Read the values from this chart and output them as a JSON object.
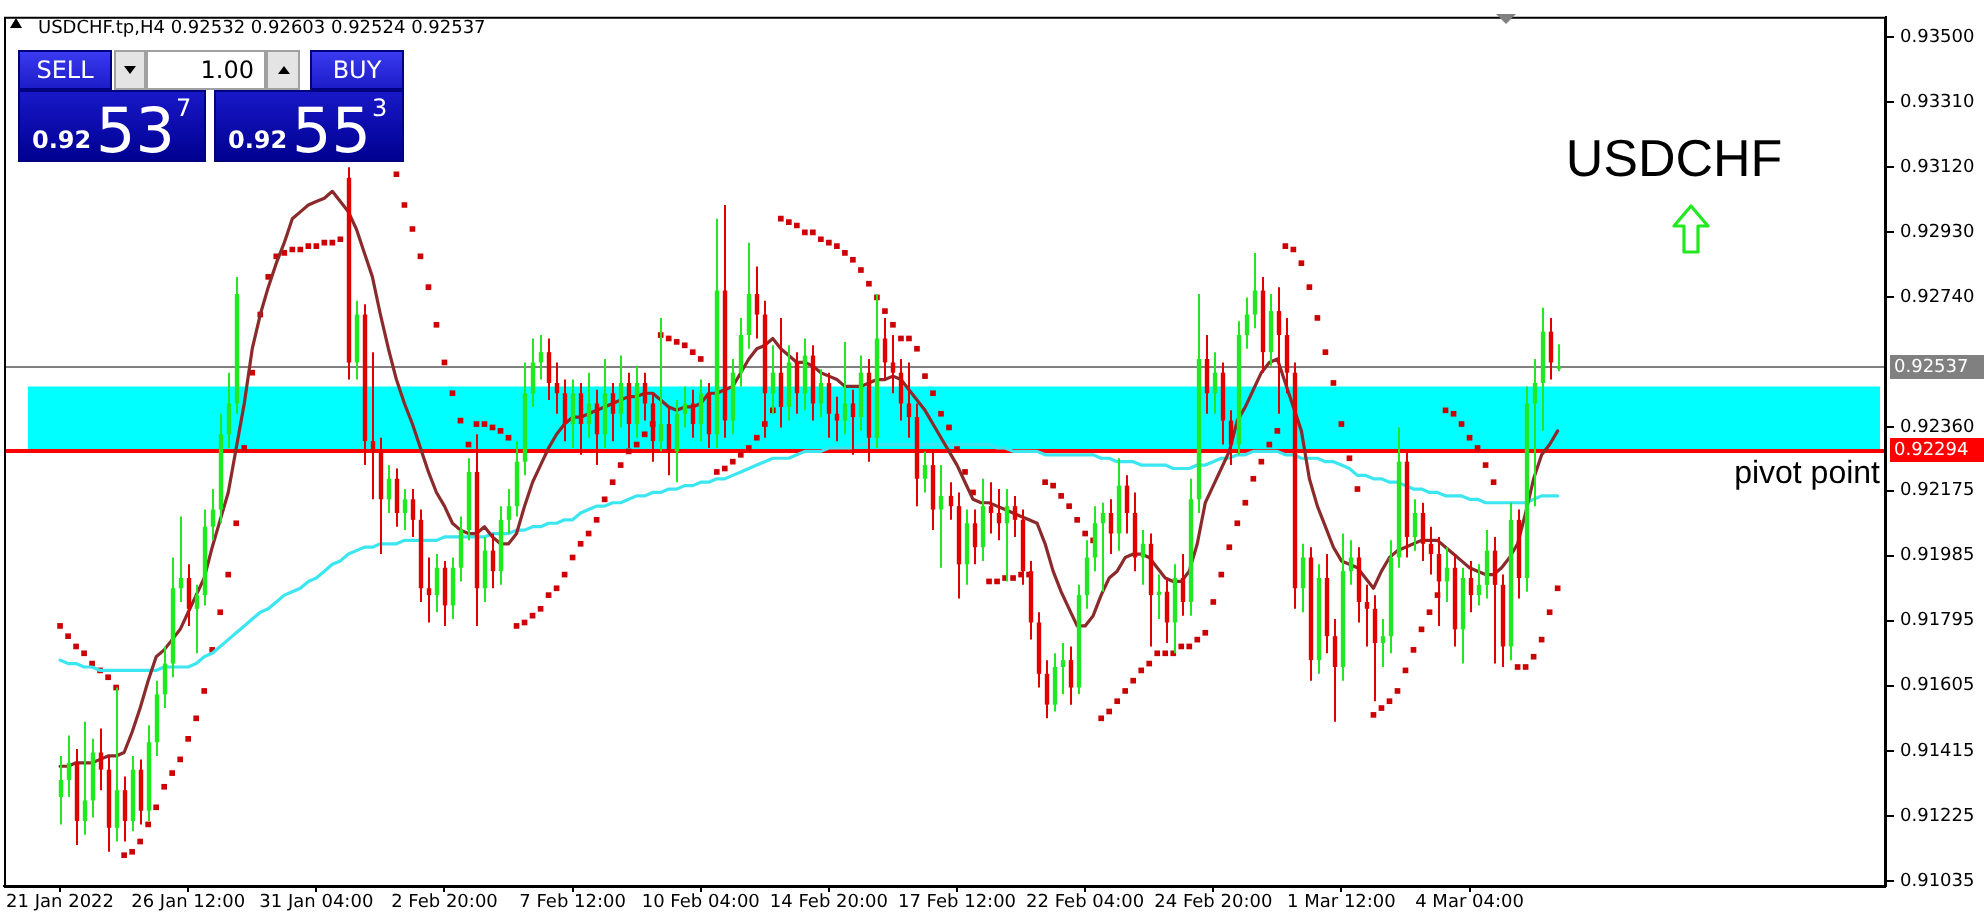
{
  "chart_data": {
    "type": "candlestick",
    "title": "USDCHF.tp,H4 0.92532 0.92603 0.92524 0.92537",
    "categories": [
      "21 Jan 2022",
      null,
      null,
      null,
      null,
      null,
      null,
      null,
      null,
      null,
      null,
      null,
      null,
      null,
      null,
      null,
      "26 Jan 12:00",
      null,
      null,
      null,
      null,
      null,
      null,
      null,
      null,
      null,
      null,
      null,
      null,
      null,
      null,
      null,
      "31 Jan 04:00",
      null,
      null,
      null,
      null,
      null,
      null,
      null,
      null,
      null,
      null,
      null,
      null,
      null,
      null,
      null,
      "2 Feb 20:00",
      null,
      null,
      null,
      null,
      null,
      null,
      null,
      null,
      null,
      null,
      null,
      null,
      null,
      null,
      null,
      "7 Feb 12:00",
      null,
      null,
      null,
      null,
      null,
      null,
      null,
      null,
      null,
      null,
      null,
      null,
      null,
      null,
      null,
      "10 Feb 04:00",
      null,
      null,
      null,
      null,
      null,
      null,
      null,
      null,
      null,
      null,
      null,
      null,
      null,
      null,
      null,
      "14 Feb 20:00",
      null,
      null,
      null,
      null,
      null,
      null,
      null,
      null,
      null,
      null,
      null,
      null,
      null,
      null,
      null,
      "17 Feb 12:00",
      null,
      null,
      null,
      null,
      null,
      null,
      null,
      null,
      null,
      null,
      null,
      null,
      null,
      null,
      null,
      "22 Feb 04:00",
      null,
      null,
      null,
      null,
      null,
      null,
      null,
      null,
      null,
      null,
      null,
      null,
      null,
      null,
      null,
      "24 Feb 20:00",
      null,
      null,
      null,
      null,
      null,
      null,
      null,
      null,
      null,
      null,
      null,
      null,
      null,
      null,
      null,
      "1 Mar 12:00",
      null,
      null,
      null,
      null,
      null,
      null,
      null,
      null,
      null,
      null,
      null,
      null,
      null,
      null,
      null,
      "4 Mar 04:00",
      null,
      null,
      null,
      null,
      null,
      null,
      null,
      null,
      null,
      null,
      null
    ],
    "ohlc": [
      [
        0.9128,
        0.914,
        0.912,
        0.9133
      ],
      [
        0.9133,
        0.9146,
        0.9128,
        0.9138
      ],
      [
        0.9138,
        0.9142,
        0.9114,
        0.9121
      ],
      [
        0.9121,
        0.915,
        0.9117,
        0.9127
      ],
      [
        0.9127,
        0.9145,
        0.9122,
        0.9141
      ],
      [
        0.9141,
        0.9148,
        0.913,
        0.9136
      ],
      [
        0.9136,
        0.914,
        0.9112,
        0.9119
      ],
      [
        0.9119,
        0.916,
        0.9115,
        0.913
      ],
      [
        0.913,
        0.9134,
        0.9115,
        0.9121
      ],
      [
        0.9121,
        0.914,
        0.9118,
        0.9136
      ],
      [
        0.9136,
        0.9139,
        0.912,
        0.9124
      ],
      [
        0.9124,
        0.9149,
        0.9121,
        0.9144
      ],
      [
        0.9144,
        0.9162,
        0.914,
        0.9158
      ],
      [
        0.9158,
        0.9172,
        0.9154,
        0.9167
      ],
      [
        0.9167,
        0.9198,
        0.9163,
        0.9189
      ],
      [
        0.9189,
        0.921,
        0.9185,
        0.9192
      ],
      [
        0.9192,
        0.9196,
        0.9178,
        0.9183
      ],
      [
        0.9183,
        0.919,
        0.917,
        0.9187
      ],
      [
        0.9187,
        0.9212,
        0.9184,
        0.9207
      ],
      [
        0.9207,
        0.9218,
        0.9203,
        0.9212
      ],
      [
        0.9212,
        0.924,
        0.9208,
        0.9234
      ],
      [
        0.9234,
        0.9252,
        0.923,
        0.9243
      ],
      [
        0.9243,
        0.928,
        0.924,
        0.9275
      ],
      null,
      null,
      null,
      null,
      null,
      null,
      null,
      null,
      null,
      null,
      null,
      null,
      null,
      [
        0.9309,
        0.9312,
        0.925,
        0.9255
      ],
      [
        0.9255,
        0.9273,
        0.925,
        0.9269
      ],
      [
        0.9269,
        0.9272,
        0.9225,
        0.9232
      ],
      [
        0.9232,
        0.9258,
        0.9215,
        0.9229
      ],
      [
        0.9229,
        0.9233,
        0.9199,
        0.9215
      ],
      [
        0.9215,
        0.9225,
        0.9211,
        0.9221
      ],
      [
        0.9221,
        0.9224,
        0.9207,
        0.9211
      ],
      [
        0.9211,
        0.9218,
        0.9206,
        0.9215
      ],
      [
        0.9215,
        0.9218,
        0.9204,
        0.9209
      ],
      [
        0.9209,
        0.9212,
        0.9185,
        0.9189
      ],
      [
        0.9189,
        0.9198,
        0.9179,
        0.9187
      ],
      [
        0.9187,
        0.9199,
        0.9182,
        0.9195
      ],
      [
        0.9195,
        0.9197,
        0.9178,
        0.9184
      ],
      [
        0.9184,
        0.9198,
        0.918,
        0.9195
      ],
      [
        0.9195,
        0.921,
        0.9191,
        0.9206
      ],
      [
        0.9206,
        0.9227,
        0.9203,
        0.9223
      ],
      [
        0.9223,
        0.9234,
        0.9178,
        0.9189
      ],
      [
        0.9189,
        0.9204,
        0.9185,
        0.92
      ],
      [
        0.92,
        0.9205,
        0.9189,
        0.9194
      ],
      [
        0.9194,
        0.9213,
        0.919,
        0.9209
      ],
      [
        0.9209,
        0.9218,
        0.9205,
        0.9213
      ],
      [
        0.9213,
        0.9232,
        0.921,
        0.9226
      ],
      [
        0.9226,
        0.9255,
        0.9222,
        0.9246
      ],
      [
        0.9246,
        0.9262,
        0.9242,
        0.9255
      ],
      [
        0.9255,
        0.9263,
        0.925,
        0.9258
      ],
      [
        0.9258,
        0.9262,
        0.9244,
        0.9249
      ],
      [
        0.9249,
        0.9255,
        0.924,
        0.9246
      ],
      [
        0.9246,
        0.925,
        0.9232,
        0.9237
      ],
      [
        0.9237,
        0.925,
        0.923,
        0.9246
      ],
      [
        0.9246,
        0.9249,
        0.9228,
        0.9237
      ],
      [
        0.9237,
        0.9252,
        0.9233,
        0.9243
      ],
      [
        0.9243,
        0.9247,
        0.9225,
        0.9234
      ],
      [
        0.9234,
        0.9256,
        0.923,
        0.9246
      ],
      [
        0.9246,
        0.9249,
        0.9232,
        0.924
      ],
      [
        0.924,
        0.9257,
        0.9236,
        0.9249
      ],
      [
        0.9249,
        0.9252,
        0.923,
        0.9237
      ],
      [
        0.9237,
        0.9254,
        0.9233,
        0.9249
      ],
      [
        0.9249,
        0.9252,
        0.9238,
        0.9243
      ],
      [
        0.9243,
        0.9246,
        0.9226,
        0.9232
      ],
      [
        0.9232,
        0.9268,
        0.9229,
        0.9237
      ],
      [
        0.9237,
        0.9242,
        0.9222,
        0.9229
      ],
      [
        0.9229,
        0.9244,
        0.922,
        0.924
      ],
      [
        0.924,
        0.9248,
        0.9236,
        0.9243
      ],
      [
        0.9243,
        0.9247,
        0.9233,
        0.9237
      ],
      [
        0.9237,
        0.925,
        0.9232,
        0.9246
      ],
      [
        0.9246,
        0.9249,
        0.923,
        0.9234
      ],
      [
        0.9234,
        0.9297,
        0.923,
        0.9276
      ],
      [
        0.9276,
        0.9301,
        0.9233,
        0.9238
      ],
      [
        0.9238,
        0.9256,
        0.9234,
        0.9252
      ],
      [
        0.9252,
        0.9268,
        0.9248,
        0.9263
      ],
      [
        0.9263,
        0.929,
        0.9259,
        0.9275
      ],
      [
        0.9275,
        0.9283,
        0.9262,
        0.9269
      ],
      [
        0.9269,
        0.9273,
        0.9233,
        0.9246
      ],
      [
        0.9246,
        0.926,
        0.924,
        0.9252
      ],
      [
        0.9252,
        0.9268,
        0.9236,
        0.9242
      ],
      [
        0.9242,
        0.926,
        0.9238,
        0.9255
      ],
      [
        0.9255,
        0.9258,
        0.924,
        0.9246
      ],
      [
        0.9246,
        0.9262,
        0.9241,
        0.9257
      ],
      [
        0.9257,
        0.926,
        0.9238,
        0.9243
      ],
      [
        0.9243,
        0.9253,
        0.9239,
        0.9249
      ],
      [
        0.9249,
        0.9252,
        0.9233,
        0.924
      ],
      [
        0.924,
        0.9245,
        0.9232,
        0.9238
      ],
      [
        0.9238,
        0.9261,
        0.9234,
        0.9243
      ],
      [
        0.9243,
        0.9247,
        0.9228,
        0.9239
      ],
      [
        0.9239,
        0.9257,
        0.9235,
        0.9252
      ],
      [
        0.9252,
        0.9256,
        0.9226,
        0.9233
      ],
      [
        0.9233,
        0.9275,
        0.923,
        0.9262
      ],
      [
        0.9262,
        0.9268,
        0.925,
        0.9255
      ],
      [
        0.9255,
        0.9263,
        0.9246,
        0.9252
      ],
      [
        0.9252,
        0.9256,
        0.9238,
        0.9243
      ],
      [
        0.9243,
        0.9255,
        0.9233,
        0.9239
      ],
      [
        0.9239,
        0.9243,
        0.9213,
        0.9221
      ],
      [
        0.9221,
        0.9229,
        0.9217,
        0.9225
      ],
      [
        0.9225,
        0.9229,
        0.9206,
        0.9212
      ],
      [
        0.9212,
        0.9225,
        0.9195,
        0.9216
      ],
      [
        0.9216,
        0.922,
        0.9209,
        0.9213
      ],
      [
        0.9213,
        0.9217,
        0.9186,
        0.9196
      ],
      [
        0.9196,
        0.9212,
        0.919,
        0.9208
      ],
      [
        0.9208,
        0.9212,
        0.9196,
        0.9201
      ],
      [
        0.9201,
        0.9221,
        0.9197,
        0.9213
      ],
      [
        0.9213,
        0.922,
        0.9205,
        0.9211
      ],
      [
        0.9211,
        0.9218,
        0.9203,
        0.9208
      ],
      [
        0.9208,
        0.9218,
        0.9191,
        0.9213
      ],
      [
        0.9213,
        0.9216,
        0.9204,
        0.9209
      ],
      [
        0.9209,
        0.9212,
        0.919,
        0.9194
      ],
      [
        0.9194,
        0.9197,
        0.9174,
        0.9179
      ],
      [
        0.9179,
        0.9182,
        0.916,
        0.9164
      ],
      [
        0.9164,
        0.9168,
        0.9151,
        0.9155
      ],
      [
        0.9155,
        0.917,
        0.9153,
        0.9166
      ],
      [
        0.9166,
        0.9173,
        0.9158,
        0.9168
      ],
      [
        0.9168,
        0.9172,
        0.9155,
        0.916
      ],
      [
        0.916,
        0.919,
        0.9158,
        0.9187
      ],
      [
        0.9187,
        0.9203,
        0.9183,
        0.9198
      ],
      [
        0.9198,
        0.9213,
        0.9194,
        0.9208
      ],
      [
        0.9208,
        0.9214,
        0.9188,
        0.9211
      ],
      [
        0.9211,
        0.9215,
        0.9199,
        0.9205
      ],
      [
        0.9205,
        0.9227,
        0.92,
        0.9219
      ],
      [
        0.9219,
        0.9222,
        0.9205,
        0.9211
      ],
      [
        0.9211,
        0.9217,
        0.9194,
        0.9198
      ],
      [
        0.9198,
        0.9206,
        0.919,
        0.9202
      ],
      [
        0.9202,
        0.9205,
        0.9172,
        0.9187
      ],
      [
        0.9187,
        0.9193,
        0.918,
        0.9188
      ],
      [
        0.9188,
        0.9192,
        0.9173,
        0.9179
      ],
      [
        0.9179,
        0.9196,
        0.917,
        0.9192
      ],
      [
        0.9192,
        0.9199,
        0.9181,
        0.9185
      ],
      [
        0.9185,
        0.9221,
        0.9181,
        0.9215
      ],
      [
        0.9215,
        0.9275,
        0.9211,
        0.9256
      ],
      [
        0.9256,
        0.9263,
        0.924,
        0.9246
      ],
      [
        0.9246,
        0.9258,
        0.924,
        0.9252
      ],
      [
        0.9252,
        0.9255,
        0.9231,
        0.9238
      ],
      [
        0.9238,
        0.9241,
        0.9225,
        0.9231
      ],
      [
        0.9231,
        0.9267,
        0.9228,
        0.9263
      ],
      [
        0.9263,
        0.9274,
        0.9259,
        0.9269
      ],
      [
        0.9269,
        0.9287,
        0.9265,
        0.9276
      ],
      [
        0.9276,
        0.928,
        0.9252,
        0.9258
      ],
      [
        0.9258,
        0.9275,
        0.9254,
        0.927
      ],
      [
        0.927,
        0.9277,
        0.924,
        0.9263
      ],
      [
        0.9263,
        0.9268,
        0.9246,
        0.9252
      ],
      [
        0.9252,
        0.9255,
        0.9183,
        0.9189
      ],
      [
        0.9189,
        0.9202,
        0.9182,
        0.9198
      ],
      [
        0.9198,
        0.9201,
        0.9162,
        0.9168
      ],
      [
        0.9168,
        0.9196,
        0.9164,
        0.9192
      ],
      [
        0.9192,
        0.9199,
        0.917,
        0.9175
      ],
      [
        0.9175,
        0.918,
        0.915,
        0.9166
      ],
      [
        0.9166,
        0.9205,
        0.9162,
        0.9194
      ],
      [
        0.9194,
        0.9203,
        0.919,
        0.9198
      ],
      [
        0.9198,
        0.9201,
        0.9179,
        0.9185
      ],
      [
        0.9185,
        0.919,
        0.9172,
        0.9183
      ],
      [
        0.9183,
        0.9187,
        0.9156,
        0.9173
      ],
      [
        0.9173,
        0.918,
        0.9166,
        0.9175
      ],
      [
        0.9175,
        0.9203,
        0.917,
        0.9198
      ],
      [
        0.9198,
        0.9236,
        0.9195,
        0.9226
      ],
      [
        0.9226,
        0.9229,
        0.9198,
        0.9204
      ],
      [
        0.9204,
        0.9215,
        0.92,
        0.9211
      ],
      [
        0.9211,
        0.9214,
        0.9197,
        0.9202
      ],
      [
        0.9202,
        0.9207,
        0.9193,
        0.9199
      ],
      [
        0.9199,
        0.9204,
        0.9178,
        0.9191
      ],
      [
        0.9191,
        0.9201,
        0.9185,
        0.9195
      ],
      [
        0.9195,
        0.9199,
        0.9172,
        0.9177
      ],
      [
        0.9177,
        0.9195,
        0.9167,
        0.9192
      ],
      [
        0.9192,
        0.9197,
        0.9182,
        0.9187
      ],
      [
        0.9187,
        0.9196,
        0.9184,
        0.919
      ],
      [
        0.919,
        0.9206,
        0.9186,
        0.92
      ],
      [
        0.92,
        0.9204,
        0.9167,
        0.919
      ],
      [
        0.919,
        0.9193,
        0.9166,
        0.9172
      ],
      [
        0.9172,
        0.9214,
        0.9168,
        0.9209
      ],
      [
        0.9209,
        0.9212,
        0.9186,
        0.9192
      ],
      [
        0.9192,
        0.9248,
        0.9188,
        0.9243
      ],
      [
        0.9243,
        0.9256,
        0.9213,
        0.9249
      ],
      [
        0.9249,
        0.9271,
        0.9235,
        0.9264
      ],
      [
        0.9264,
        0.9268,
        0.925,
        0.9255
      ],
      [
        0.92532,
        0.92603,
        0.92524,
        0.92537
      ]
    ],
    "colors": [
      "#22e822",
      "#22e822",
      "#e00000",
      "#22e822",
      "#22e822",
      "#e00000",
      "#e00000",
      "#22e822",
      "#e00000",
      "#22e822",
      "#e00000",
      "#22e822",
      "#22e822",
      "#22e822",
      "#22e822",
      "#22e822",
      "#e00000",
      "#22e822",
      "#22e822",
      "#22e822",
      "#22e822",
      "#22e822",
      "#22e822",
      null,
      null,
      null,
      null,
      null,
      null,
      null,
      null,
      null,
      null,
      null,
      null,
      null,
      "#e00000",
      "#22e822",
      "#e00000",
      "#e00000",
      "#e00000",
      "#22e822",
      "#e00000",
      "#22e822",
      "#e00000",
      "#e00000",
      "#e00000",
      "#22e822",
      "#e00000",
      "#22e822",
      "#22e822",
      "#22e822",
      "#e00000",
      "#22e822",
      "#e00000",
      "#22e822",
      "#22e822",
      "#22e822",
      "#22e822",
      "#22e822",
      "#22e822",
      "#e00000",
      "#e00000",
      "#e00000",
      "#22e822",
      "#e00000",
      "#22e822",
      "#e00000",
      "#22e822",
      "#e00000",
      "#22e822",
      "#e00000",
      "#22e822",
      "#e00000",
      "#e00000",
      "#22e822",
      "#e00000",
      "#22e822",
      "#22e822",
      "#e00000",
      "#22e822",
      "#e00000",
      "#22e822",
      "#e00000",
      "#22e822",
      "#22e822",
      "#22e822",
      "#e00000",
      "#e00000",
      "#22e822",
      "#e00000",
      "#22e822",
      "#e00000",
      "#22e822",
      "#e00000",
      "#22e822",
      "#e00000",
      "#e00000",
      "#22e822",
      "#e00000",
      "#22e822",
      "#e00000",
      "#22e822",
      "#e00000",
      "#e00000",
      "#e00000",
      "#e00000",
      "#e00000",
      "#22e822",
      "#e00000",
      "#22e822",
      "#e00000",
      "#e00000",
      "#22e822",
      "#e00000",
      "#22e822",
      "#e00000",
      "#e00000",
      "#22e822",
      "#e00000",
      "#e00000",
      "#e00000",
      "#e00000",
      "#e00000",
      "#22e822",
      "#22e822",
      "#e00000",
      "#22e822",
      "#22e822",
      "#22e822",
      "#22e822",
      "#e00000",
      "#22e822",
      "#e00000",
      "#e00000",
      "#22e822",
      "#e00000",
      "#22e822",
      "#e00000",
      "#22e822",
      "#e00000",
      "#22e822",
      "#22e822",
      "#e00000",
      "#22e822",
      "#e00000",
      "#e00000",
      "#22e822",
      "#22e822",
      "#22e822",
      "#e00000",
      "#22e822",
      "#e00000",
      "#e00000",
      "#e00000",
      "#22e822",
      "#e00000",
      "#22e822",
      "#e00000",
      "#e00000",
      "#22e822",
      "#22e822",
      "#e00000",
      "#e00000",
      "#e00000",
      "#22e822",
      "#22e822",
      "#22e822",
      "#e00000",
      "#22e822",
      "#e00000",
      "#e00000",
      "#e00000",
      "#22e822",
      "#e00000",
      "#22e822",
      "#e00000",
      "#22e822",
      "#22e822",
      "#e00000",
      "#e00000",
      "#22e822",
      "#e00000",
      "#22e822",
      "#22e822",
      "#22e822",
      "#e00000",
      "#22e822"
    ],
    "series": [
      {
        "type": "line",
        "color": "#8b2a2a",
        "values": [
          0.9137,
          0.9137,
          0.9138,
          0.9138,
          0.9138,
          0.9139,
          0.914,
          0.914,
          0.9141,
          0.9147,
          0.9154,
          0.9162,
          0.9169,
          0.9171,
          0.9174,
          0.9177,
          0.9182,
          0.9187,
          0.9192,
          0.9201,
          0.9209,
          0.9217,
          0.923,
          0.9243,
          0.9259,
          0.9269,
          0.9277,
          0.9284,
          0.929,
          0.9297,
          0.9299,
          0.9301,
          0.9302,
          0.9303,
          0.9305,
          0.9302,
          0.9299,
          0.9294,
          0.9287,
          0.928,
          0.9269,
          0.9259,
          0.925,
          0.9243,
          0.9237,
          0.923,
          0.9223,
          0.9217,
          0.9213,
          0.9208,
          0.9206,
          0.9205,
          0.9205,
          0.9207,
          0.9204,
          0.9202,
          0.9202,
          0.9205,
          0.9213,
          0.922,
          0.9225,
          0.923,
          0.9234,
          0.9237,
          0.9239,
          0.9239,
          0.924,
          0.9241,
          0.9242,
          0.9243,
          0.9244,
          0.9245,
          0.9245,
          0.9246,
          0.9246,
          0.9244,
          0.9242,
          0.9241,
          0.9242,
          0.9242,
          0.9243,
          0.9246,
          0.9246,
          0.9247,
          0.9248,
          0.9252,
          0.9256,
          0.9259,
          0.926,
          0.9262,
          0.9259,
          0.9257,
          0.9255,
          0.9255,
          0.9254,
          0.9252,
          0.9251,
          0.925,
          0.9248,
          0.9248,
          0.9248,
          0.9249,
          0.925,
          0.925,
          0.9251,
          0.925,
          0.9247,
          0.9244,
          0.9241,
          0.9237,
          0.9233,
          0.9229,
          0.9225,
          0.922,
          0.9215,
          0.9214,
          0.9214,
          0.9213,
          0.9212,
          0.9211,
          0.921,
          0.9209,
          0.9208,
          0.9202,
          0.9194,
          0.9188,
          0.9183,
          0.9178,
          0.9178,
          0.9181,
          0.9187,
          0.9192,
          0.9194,
          0.9198,
          0.9199,
          0.9199,
          0.9198,
          0.9195,
          0.9192,
          0.9191,
          0.9191,
          0.9194,
          0.9202,
          0.9214,
          0.9219,
          0.9224,
          0.9229,
          0.9238,
          0.9242,
          0.9247,
          0.9252,
          0.9255,
          0.9256,
          0.9249,
          0.9242,
          0.9235,
          0.9221,
          0.9213,
          0.9207,
          0.9201,
          0.9197,
          0.9196,
          0.9195,
          0.9192,
          0.9189,
          0.9194,
          0.9198,
          0.92,
          0.9201,
          0.9202,
          0.9203,
          0.9203,
          0.9203,
          0.9201,
          0.9199,
          0.9197,
          0.9195,
          0.9194,
          0.9193,
          0.9193,
          0.9195,
          0.9198,
          0.9202,
          0.9211,
          0.9221,
          0.9228,
          0.9231,
          0.9235
        ]
      },
      {
        "type": "line",
        "color": "#3ce6f0",
        "values": [
          0.9168,
          0.9167,
          0.9167,
          0.9166,
          0.9166,
          0.9165,
          0.9165,
          0.9165,
          0.9165,
          0.9165,
          0.9165,
          0.9165,
          0.9165,
          0.9166,
          0.9166,
          0.9166,
          0.9166,
          0.9167,
          0.9169,
          0.917,
          0.9172,
          0.9174,
          0.9176,
          0.9178,
          0.918,
          0.9182,
          0.9183,
          0.9185,
          0.9187,
          0.9188,
          0.9189,
          0.9191,
          0.9192,
          0.9194,
          0.9196,
          0.9197,
          0.9199,
          0.92,
          0.9201,
          0.9201,
          0.9202,
          0.9202,
          0.9202,
          0.9203,
          0.9203,
          0.9203,
          0.9203,
          0.9203,
          0.9204,
          0.9204,
          0.9204,
          0.9204,
          0.9204,
          0.9204,
          0.9205,
          0.9205,
          0.9205,
          0.9206,
          0.9206,
          0.9207,
          0.9207,
          0.9208,
          0.9208,
          0.9209,
          0.9209,
          0.9211,
          0.9212,
          0.9213,
          0.9213,
          0.9214,
          0.9214,
          0.9215,
          0.9216,
          0.9216,
          0.9217,
          0.9217,
          0.9218,
          0.9218,
          0.9219,
          0.9219,
          0.922,
          0.922,
          0.9221,
          0.9221,
          0.9222,
          0.9223,
          0.9224,
          0.9225,
          0.9226,
          0.9227,
          0.9227,
          0.9227,
          0.9228,
          0.9229,
          0.9229,
          0.9229,
          0.923,
          0.923,
          0.923,
          0.923,
          0.9231,
          0.9231,
          0.9231,
          0.9231,
          0.9231,
          0.9231,
          0.9231,
          0.9231,
          0.9231,
          0.9231,
          0.9231,
          0.9231,
          0.9231,
          0.9231,
          0.9231,
          0.9231,
          0.9231,
          0.923,
          0.923,
          0.9229,
          0.9229,
          0.9229,
          0.9229,
          0.9228,
          0.9228,
          0.9228,
          0.9228,
          0.9228,
          0.9228,
          0.9228,
          0.9227,
          0.9227,
          0.9226,
          0.9226,
          0.9226,
          0.9225,
          0.9225,
          0.9225,
          0.9225,
          0.9224,
          0.9224,
          0.9224,
          0.9225,
          0.9225,
          0.9226,
          0.9227,
          0.9227,
          0.9228,
          0.9228,
          0.9229,
          0.9229,
          0.9229,
          0.9229,
          0.9228,
          0.9228,
          0.9227,
          0.9227,
          0.9227,
          0.9226,
          0.9226,
          0.9225,
          0.9224,
          0.9222,
          0.9222,
          0.9221,
          0.9221,
          0.922,
          0.922,
          0.9219,
          0.9218,
          0.9218,
          0.9217,
          0.9217,
          0.9216,
          0.9216,
          0.9216,
          0.9215,
          0.9215,
          0.9214,
          0.9214,
          0.9214,
          0.9214,
          0.9214,
          0.9214,
          0.9215,
          0.9216,
          0.9216,
          0.9216
        ]
      },
      {
        "type": "scatter",
        "color": "#cc0000",
        "marker": "square",
        "values": [
          0.9178,
          0.9175,
          0.9172,
          0.917,
          0.9167,
          0.9165,
          0.9163,
          0.916,
          0.9111,
          0.9112,
          0.9115,
          0.912,
          0.9125,
          0.9131,
          0.9135,
          0.9139,
          0.9145,
          0.9151,
          0.9159,
          0.9171,
          0.9182,
          0.9193,
          0.9208,
          0.923,
          0.9252,
          0.9269,
          0.928,
          0.9286,
          0.9287,
          0.9288,
          0.9288,
          0.9289,
          0.9289,
          0.929,
          0.929,
          0.9291,
          null,
          null,
          null,
          null,
          null,
          null,
          0.931,
          0.9301,
          0.9294,
          0.9286,
          0.9277,
          0.9266,
          0.9255,
          0.9246,
          0.9238,
          0.9231,
          0.9237,
          0.9237,
          0.9236,
          0.9235,
          0.9233,
          0.9178,
          0.9179,
          0.9181,
          0.9183,
          0.9187,
          0.9189,
          0.9193,
          0.9198,
          0.9202,
          0.9205,
          0.9209,
          0.9215,
          0.922,
          0.9225,
          0.9229,
          0.9231,
          0.9234,
          0.9237,
          0.9263,
          0.9262,
          0.9261,
          0.926,
          0.9258,
          0.9256,
          null,
          0.9223,
          0.9224,
          0.9226,
          0.9228,
          0.923,
          0.9233,
          0.9237,
          0.9241,
          0.9297,
          0.9296,
          0.9295,
          0.9293,
          0.9293,
          0.9291,
          0.929,
          0.9289,
          0.9287,
          0.9285,
          0.9282,
          0.9278,
          0.9274,
          0.927,
          0.9266,
          0.9262,
          0.9262,
          0.9259,
          0.9251,
          0.9246,
          0.924,
          0.9236,
          0.923,
          0.9223,
          0.9217,
          null,
          0.9191,
          0.9191,
          0.9192,
          0.9192,
          0.9193,
          0.9193,
          null,
          0.922,
          0.9219,
          0.9216,
          0.9213,
          0.9209,
          0.9205,
          0.9203,
          0.9151,
          0.9153,
          0.9156,
          0.9159,
          0.9162,
          0.9165,
          0.9167,
          0.917,
          0.917,
          0.917,
          0.9172,
          0.9172,
          0.9174,
          0.9176,
          0.9185,
          0.9193,
          0.9201,
          0.9208,
          0.9214,
          0.9221,
          0.9226,
          0.9231,
          0.9235,
          0.9289,
          0.9288,
          0.9284,
          0.9277,
          0.9268,
          0.9258,
          0.9249,
          0.9237,
          0.9227,
          0.9218,
          null,
          0.9152,
          0.9154,
          0.9156,
          0.9159,
          0.9165,
          0.9171,
          0.9177,
          0.9182,
          0.9187,
          0.9241,
          0.924,
          0.9237,
          0.9233,
          0.923,
          0.9225,
          0.922,
          null,
          null,
          0.9166,
          0.9166,
          0.9169,
          0.9174,
          0.9182,
          0.9189
        ]
      }
    ],
    "ylim": [
      0.9102,
      0.9356
    ],
    "yticks": [
      {
        "value": 0.935,
        "label": "0.93500"
      },
      {
        "value": 0.9331,
        "label": "0.93310"
      },
      {
        "value": 0.9312,
        "label": "0.93120"
      },
      {
        "value": 0.9293,
        "label": "0.92930"
      },
      {
        "value": 0.9274,
        "label": "0.92740"
      },
      {
        "value": 0.9236,
        "label": "0.92360"
      },
      {
        "value": 0.92175,
        "label": "0.92175"
      },
      {
        "value": 0.91985,
        "label": "0.91985"
      },
      {
        "value": 0.91795,
        "label": "0.91795"
      },
      {
        "value": 0.91605,
        "label": "0.91605"
      },
      {
        "value": 0.91415,
        "label": "0.91415"
      },
      {
        "value": 0.91225,
        "label": "0.91225"
      },
      {
        "value": 0.91035,
        "label": "0.91035"
      }
    ],
    "bands": [
      {
        "axis": "y",
        "from": 0.92294,
        "to": 0.9248,
        "color": "#00ffff"
      }
    ],
    "ref_lines": [
      {
        "axis": "y",
        "value": 0.92537,
        "label": "0.92537",
        "color": "#808080"
      },
      {
        "axis": "y",
        "value": 0.92294,
        "label": "0.92294",
        "color": "#ff0000"
      }
    ],
    "annotations": [
      "USDCHF",
      "SELL",
      "1.00",
      "BUY",
      "0.92537",
      "0.92553",
      {
        "text": "pivot point",
        "y": 0.92294
      }
    ],
    "grid": false
  }
}
